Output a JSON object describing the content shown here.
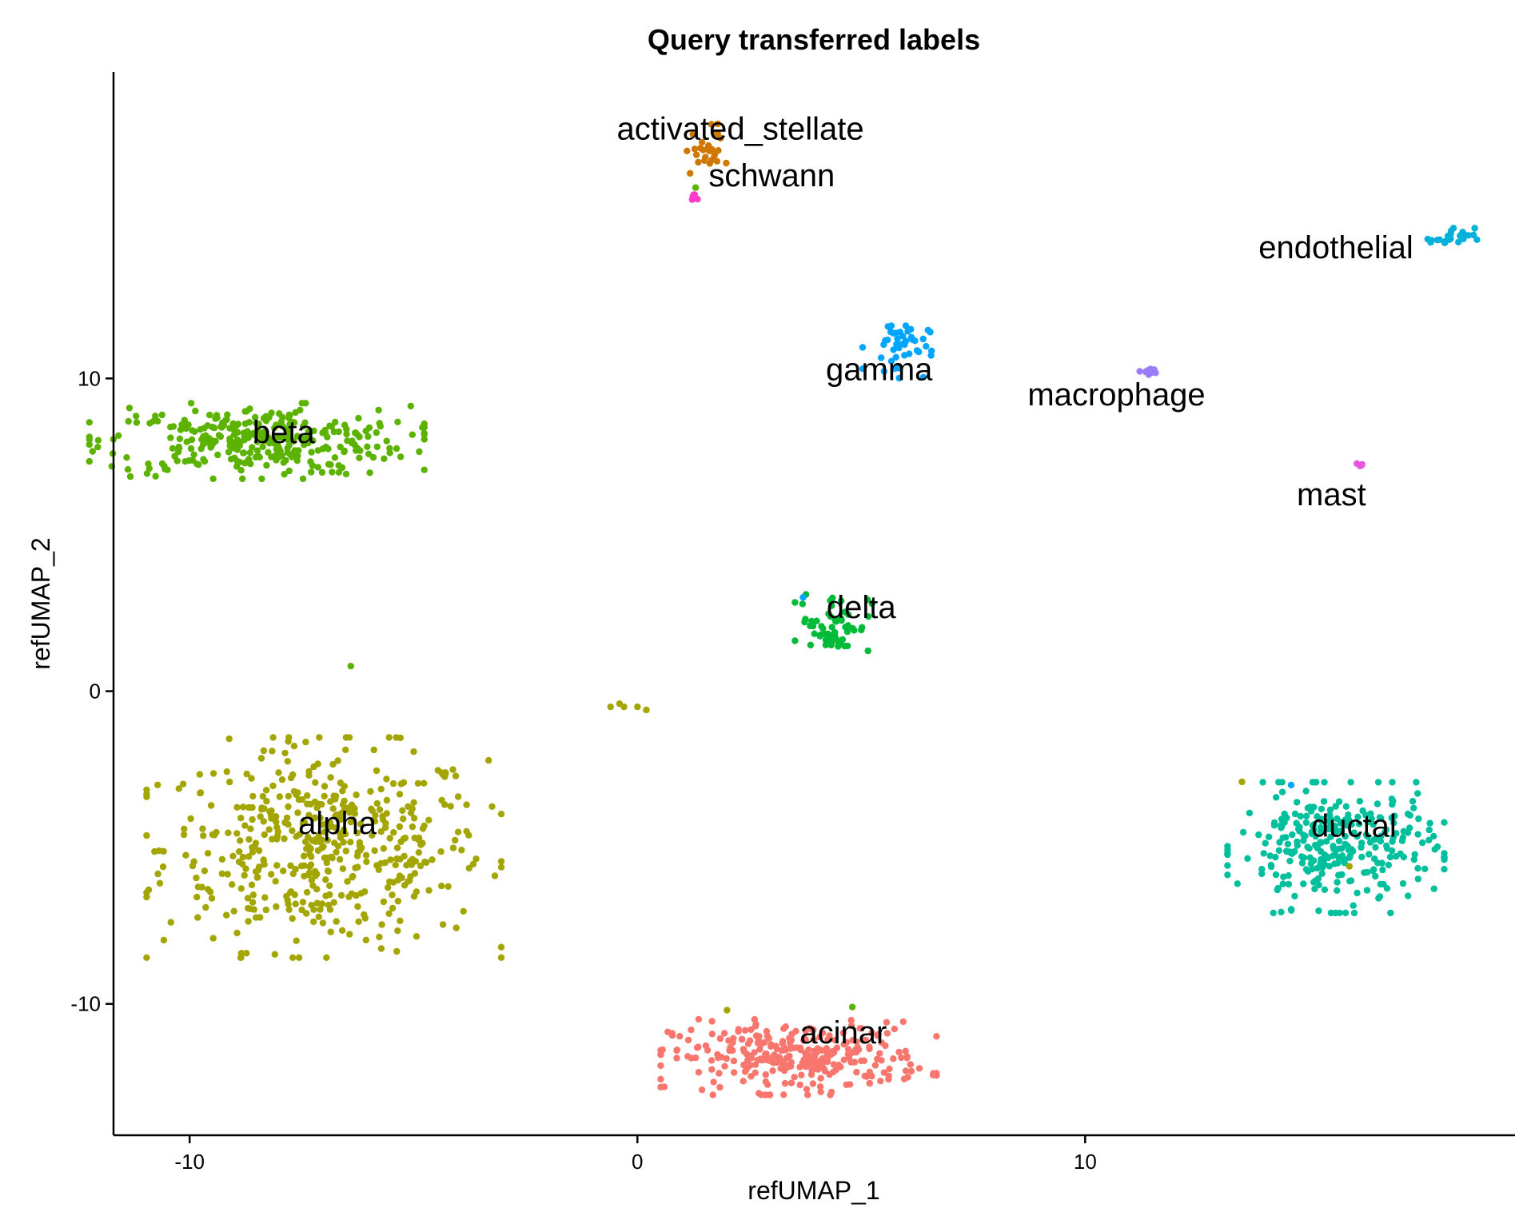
{
  "chart_data": {
    "type": "scatter",
    "title": "Query transferred labels",
    "xlabel": "refUMAP_1",
    "ylabel": "refUMAP_2",
    "xlim": [
      -11.7,
      19.6
    ],
    "ylim": [
      -14.2,
      19.8
    ],
    "xticks": [
      -10,
      0,
      10
    ],
    "yticks": [
      -10,
      0,
      10
    ],
    "grid": false,
    "legend": "none",
    "clusters": [
      {
        "label": "alpha",
        "color": "#A3A500",
        "center": [
          -7.0,
          -5.0
        ],
        "spread": [
          1.8,
          1.6
        ],
        "count": 480,
        "label_pos": [
          -6.7,
          -4.2
        ]
      },
      {
        "label": "beta",
        "color": "#5BB300",
        "center": [
          -8.5,
          8.0
        ],
        "spread": [
          1.7,
          0.55
        ],
        "count": 320,
        "label_pos": [
          -7.9,
          8.3
        ]
      },
      {
        "label": "acinar",
        "color": "#F8766D",
        "center": [
          3.6,
          -11.7
        ],
        "spread": [
          1.4,
          0.55
        ],
        "count": 300,
        "label_pos": [
          4.6,
          -10.9
        ]
      },
      {
        "label": "ductal",
        "color": "#00BF9D",
        "center": [
          15.6,
          -5.0
        ],
        "spread": [
          1.1,
          0.95
        ],
        "count": 300,
        "label_pos": [
          16.0,
          -4.3
        ]
      },
      {
        "label": "delta",
        "color": "#00BA38",
        "center": [
          4.4,
          2.2
        ],
        "spread": [
          0.4,
          0.5
        ],
        "count": 60,
        "label_pos": [
          5.0,
          2.7
        ]
      },
      {
        "label": "gamma",
        "color": "#00A5FF",
        "center": [
          5.8,
          11.0
        ],
        "spread": [
          0.35,
          0.45
        ],
        "count": 45,
        "label_pos": [
          5.4,
          10.3
        ]
      },
      {
        "label": "activated_stellate",
        "color": "#CF7800",
        "center": [
          1.5,
          17.3
        ],
        "spread": [
          0.22,
          0.4
        ],
        "count": 28,
        "label_pos": [
          2.3,
          18.0
        ]
      },
      {
        "label": "schwann",
        "color": "#FF3DC8",
        "center": [
          1.25,
          15.7
        ],
        "spread": [
          0.05,
          0.1
        ],
        "count": 6,
        "label_pos": [
          3.0,
          16.5
        ]
      },
      {
        "label": "endothelial",
        "color": "#00B0D8",
        "center": [
          18.2,
          14.5
        ],
        "spread": [
          0.25,
          0.15
        ],
        "count": 22,
        "label_pos": [
          15.6,
          14.2
        ]
      },
      {
        "label": "macrophage",
        "color": "#9A7CFF",
        "center": [
          11.4,
          10.2
        ],
        "spread": [
          0.1,
          0.06
        ],
        "count": 10,
        "label_pos": [
          10.7,
          9.5
        ]
      },
      {
        "label": "mast",
        "color": "#E755E1",
        "center": [
          16.2,
          7.2
        ],
        "spread": [
          0.06,
          0.05
        ],
        "count": 4,
        "label_pos": [
          15.5,
          6.3
        ]
      }
    ],
    "extra_points": [
      {
        "x": -6.4,
        "y": 0.8,
        "color": "#5BB300"
      },
      {
        "x": -0.6,
        "y": -0.5,
        "color": "#A3A500"
      },
      {
        "x": -0.4,
        "y": -0.4,
        "color": "#A3A500"
      },
      {
        "x": -0.3,
        "y": -0.5,
        "color": "#A3A500"
      },
      {
        "x": 0.0,
        "y": -0.5,
        "color": "#A3A500"
      },
      {
        "x": 0.2,
        "y": -0.6,
        "color": "#A3A500"
      },
      {
        "x": 3.7,
        "y": 3.0,
        "color": "#00A5FF"
      },
      {
        "x": 2.0,
        "y": -10.2,
        "color": "#A3A500"
      },
      {
        "x": 4.8,
        "y": -10.1,
        "color": "#5BB300"
      },
      {
        "x": 13.5,
        "y": -2.9,
        "color": "#A3A500"
      },
      {
        "x": 14.6,
        "y": -3.0,
        "color": "#00A5FF"
      },
      {
        "x": 15.9,
        "y": -5.6,
        "color": "#A3A500"
      },
      {
        "x": 1.3,
        "y": 16.1,
        "color": "#5BB300"
      }
    ]
  }
}
